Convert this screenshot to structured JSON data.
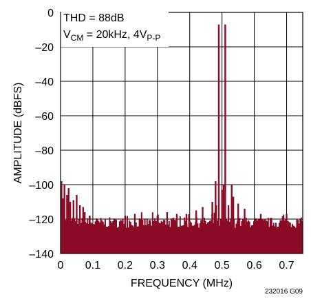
{
  "chart_data": {
    "type": "bar",
    "xlabel": "FREQUENCY (MHz)",
    "ylabel": "AMPLITUDE (dBFS)",
    "xlim": [
      0,
      0.75
    ],
    "ylim": [
      -140,
      0
    ],
    "x_ticks": [
      "0",
      "0.1",
      "0.2",
      "0.3",
      "0.4",
      "0.5",
      "0.6",
      "0.7"
    ],
    "y_ticks": [
      "0",
      "–20",
      "–40",
      "–60",
      "–80",
      "–100",
      "–120",
      "–140"
    ],
    "grid": true,
    "color": "#8b0a26",
    "noise_floor_dbfs": -122,
    "annotation": {
      "line1": "THD = 88dB",
      "line2_main": "V",
      "line2_sub1": "CM",
      "line2_mid": " = 20kHz, 4V",
      "line2_sub2": "P-P"
    },
    "peaks": [
      {
        "x": 0.49,
        "y": -7
      },
      {
        "x": 0.51,
        "y": -7
      },
      {
        "x": 0.003,
        "y": -98
      },
      {
        "x": 0.007,
        "y": -108
      },
      {
        "x": 0.012,
        "y": -100
      },
      {
        "x": 0.02,
        "y": -106
      },
      {
        "x": 0.025,
        "y": -102
      },
      {
        "x": 0.03,
        "y": -110
      },
      {
        "x": 0.04,
        "y": -109
      },
      {
        "x": 0.05,
        "y": -106
      },
      {
        "x": 0.06,
        "y": -112
      },
      {
        "x": 0.07,
        "y": -113
      },
      {
        "x": 0.075,
        "y": -116
      },
      {
        "x": 0.09,
        "y": -118
      },
      {
        "x": 0.2,
        "y": -118
      },
      {
        "x": 0.23,
        "y": -117
      },
      {
        "x": 0.3,
        "y": -118
      },
      {
        "x": 0.33,
        "y": -116
      },
      {
        "x": 0.36,
        "y": -117
      },
      {
        "x": 0.39,
        "y": -117
      },
      {
        "x": 0.42,
        "y": -115
      },
      {
        "x": 0.44,
        "y": -113
      },
      {
        "x": 0.47,
        "y": -110
      },
      {
        "x": 0.48,
        "y": -98
      },
      {
        "x": 0.482,
        "y": -112
      },
      {
        "x": 0.5,
        "y": -103
      },
      {
        "x": 0.505,
        "y": -100
      },
      {
        "x": 0.52,
        "y": -112
      },
      {
        "x": 0.53,
        "y": -100
      },
      {
        "x": 0.535,
        "y": -107
      },
      {
        "x": 0.55,
        "y": -111
      },
      {
        "x": 0.57,
        "y": -114
      },
      {
        "x": 0.62,
        "y": -117
      },
      {
        "x": 0.7,
        "y": -117
      }
    ]
  },
  "figure_id": "232016 G09"
}
